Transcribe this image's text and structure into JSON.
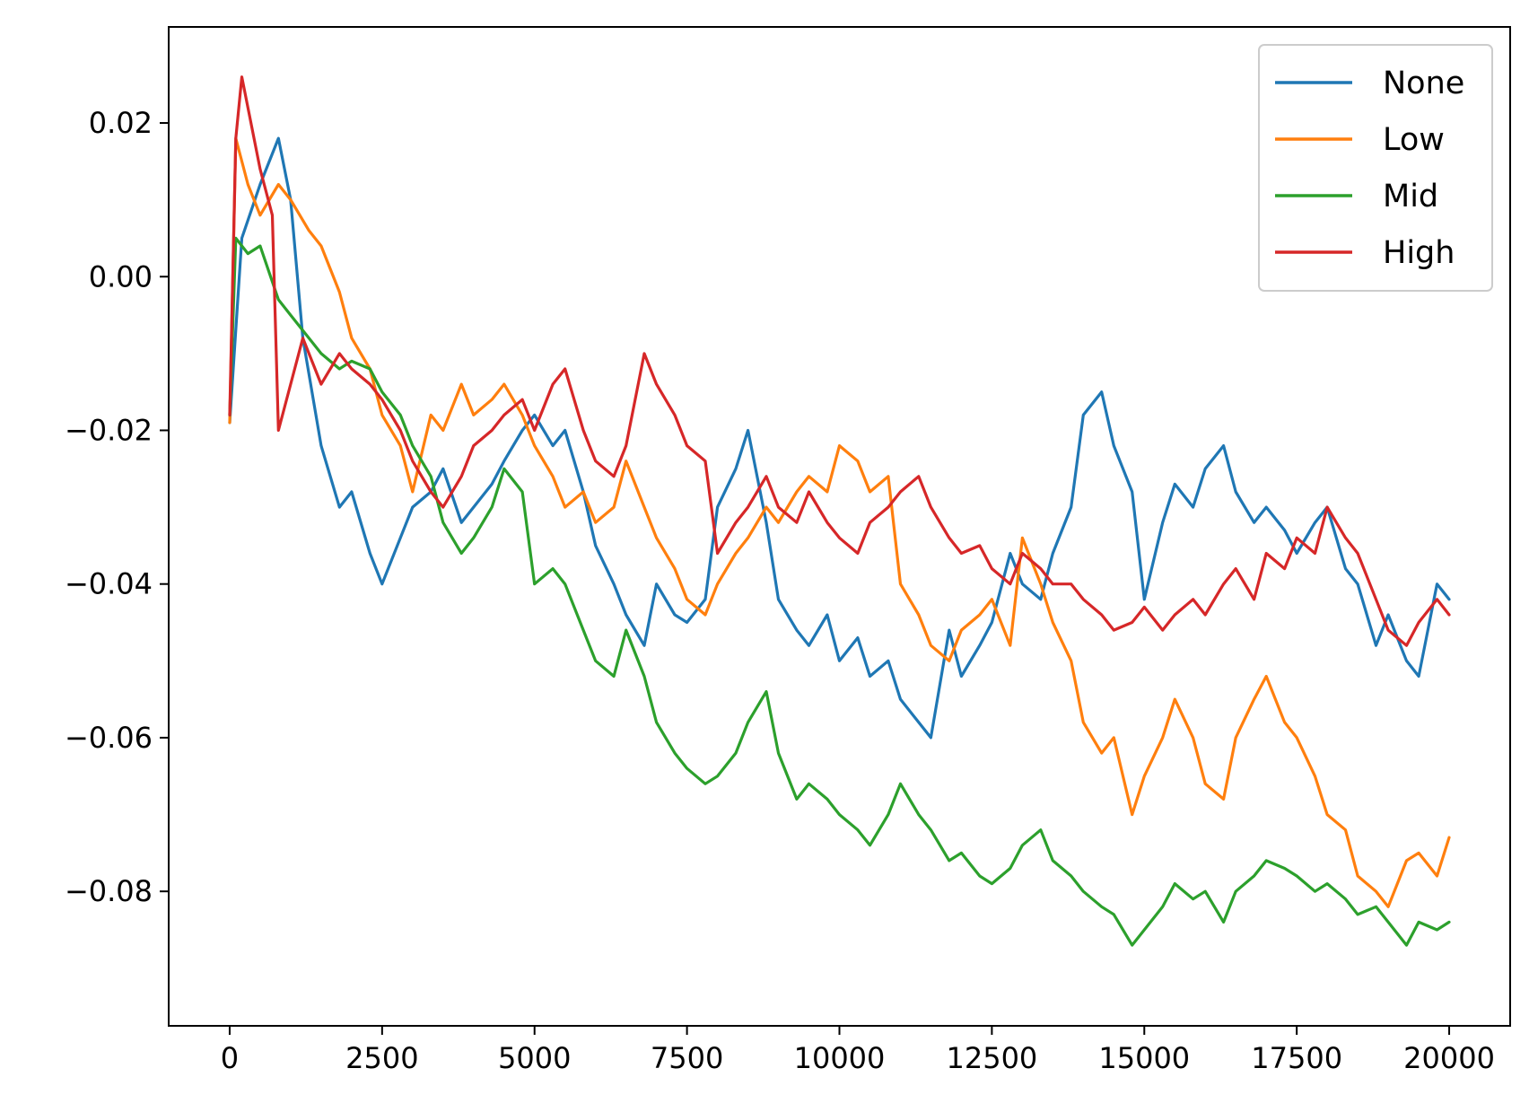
{
  "chart_data": {
    "type": "line",
    "title": "",
    "xlabel": "",
    "ylabel": "",
    "xlim": [
      -1000,
      21000
    ],
    "ylim": [
      -0.0975,
      0.0325
    ],
    "xticks": [
      0,
      2500,
      5000,
      7500,
      10000,
      12500,
      15000,
      17500,
      20000
    ],
    "xtick_labels": [
      "0",
      "2500",
      "5000",
      "7500",
      "10000",
      "12500",
      "15000",
      "17500",
      "20000"
    ],
    "yticks": [
      0.02,
      0.0,
      -0.02,
      -0.04,
      -0.06,
      -0.08
    ],
    "ytick_labels": [
      "0.02",
      "0.00",
      "−0.02",
      "−0.04",
      "−0.06",
      "−0.08"
    ],
    "grid": false,
    "legend_position": "top-right",
    "series": [
      {
        "name": "None",
        "color": "#1f77b4",
        "x": [
          0,
          200,
          500,
          800,
          1000,
          1200,
          1500,
          1800,
          2000,
          2300,
          2500,
          2800,
          3000,
          3300,
          3500,
          3800,
          4000,
          4300,
          4500,
          4800,
          5000,
          5300,
          5500,
          5800,
          6000,
          6300,
          6500,
          6800,
          7000,
          7300,
          7500,
          7800,
          8000,
          8300,
          8500,
          8800,
          9000,
          9300,
          9500,
          9800,
          10000,
          10300,
          10500,
          10800,
          11000,
          11300,
          11500,
          11800,
          12000,
          12300,
          12500,
          12800,
          13000,
          13300,
          13500,
          13800,
          14000,
          14300,
          14500,
          14800,
          15000,
          15300,
          15500,
          15800,
          16000,
          16300,
          16500,
          16800,
          17000,
          17300,
          17500,
          17800,
          18000,
          18300,
          18500,
          18800,
          19000,
          19300,
          19500,
          19800,
          20000
        ],
        "values": [
          -0.019,
          0.005,
          0.012,
          0.018,
          0.01,
          -0.008,
          -0.022,
          -0.03,
          -0.028,
          -0.036,
          -0.04,
          -0.034,
          -0.03,
          -0.028,
          -0.025,
          -0.032,
          -0.03,
          -0.027,
          -0.024,
          -0.02,
          -0.018,
          -0.022,
          -0.02,
          -0.028,
          -0.035,
          -0.04,
          -0.044,
          -0.048,
          -0.04,
          -0.044,
          -0.045,
          -0.042,
          -0.03,
          -0.025,
          -0.02,
          -0.032,
          -0.042,
          -0.046,
          -0.048,
          -0.044,
          -0.05,
          -0.047,
          -0.052,
          -0.05,
          -0.055,
          -0.058,
          -0.06,
          -0.046,
          -0.052,
          -0.048,
          -0.045,
          -0.036,
          -0.04,
          -0.042,
          -0.036,
          -0.03,
          -0.018,
          -0.015,
          -0.022,
          -0.028,
          -0.042,
          -0.032,
          -0.027,
          -0.03,
          -0.025,
          -0.022,
          -0.028,
          -0.032,
          -0.03,
          -0.033,
          -0.036,
          -0.032,
          -0.03,
          -0.038,
          -0.04,
          -0.048,
          -0.044,
          -0.05,
          -0.052,
          -0.04,
          -0.042
        ]
      },
      {
        "name": "Low",
        "color": "#ff7f0e",
        "x": [
          0,
          100,
          300,
          500,
          800,
          1000,
          1300,
          1500,
          1800,
          2000,
          2300,
          2500,
          2800,
          3000,
          3300,
          3500,
          3800,
          4000,
          4300,
          4500,
          4800,
          5000,
          5300,
          5500,
          5800,
          6000,
          6300,
          6500,
          6800,
          7000,
          7300,
          7500,
          7800,
          8000,
          8300,
          8500,
          8800,
          9000,
          9300,
          9500,
          9800,
          10000,
          10300,
          10500,
          10800,
          11000,
          11300,
          11500,
          11800,
          12000,
          12300,
          12500,
          12800,
          13000,
          13300,
          13500,
          13800,
          14000,
          14300,
          14500,
          14800,
          15000,
          15300,
          15500,
          15800,
          16000,
          16300,
          16500,
          16800,
          17000,
          17300,
          17500,
          17800,
          18000,
          18300,
          18500,
          18800,
          19000,
          19300,
          19500,
          19800,
          20000
        ],
        "values": [
          -0.019,
          0.018,
          0.012,
          0.008,
          0.012,
          0.01,
          0.006,
          0.004,
          -0.002,
          -0.008,
          -0.012,
          -0.018,
          -0.022,
          -0.028,
          -0.018,
          -0.02,
          -0.014,
          -0.018,
          -0.016,
          -0.014,
          -0.018,
          -0.022,
          -0.026,
          -0.03,
          -0.028,
          -0.032,
          -0.03,
          -0.024,
          -0.03,
          -0.034,
          -0.038,
          -0.042,
          -0.044,
          -0.04,
          -0.036,
          -0.034,
          -0.03,
          -0.032,
          -0.028,
          -0.026,
          -0.028,
          -0.022,
          -0.024,
          -0.028,
          -0.026,
          -0.04,
          -0.044,
          -0.048,
          -0.05,
          -0.046,
          -0.044,
          -0.042,
          -0.048,
          -0.034,
          -0.04,
          -0.045,
          -0.05,
          -0.058,
          -0.062,
          -0.06,
          -0.07,
          -0.065,
          -0.06,
          -0.055,
          -0.06,
          -0.066,
          -0.068,
          -0.06,
          -0.055,
          -0.052,
          -0.058,
          -0.06,
          -0.065,
          -0.07,
          -0.072,
          -0.078,
          -0.08,
          -0.082,
          -0.076,
          -0.075,
          -0.078,
          -0.073
        ]
      },
      {
        "name": "Mid",
        "color": "#2ca02c",
        "x": [
          0,
          100,
          300,
          500,
          800,
          1000,
          1300,
          1500,
          1800,
          2000,
          2300,
          2500,
          2800,
          3000,
          3300,
          3500,
          3800,
          4000,
          4300,
          4500,
          4800,
          5000,
          5300,
          5500,
          5800,
          6000,
          6300,
          6500,
          6800,
          7000,
          7300,
          7500,
          7800,
          8000,
          8300,
          8500,
          8800,
          9000,
          9300,
          9500,
          9800,
          10000,
          10300,
          10500,
          10800,
          11000,
          11300,
          11500,
          11800,
          12000,
          12300,
          12500,
          12800,
          13000,
          13300,
          13500,
          13800,
          14000,
          14300,
          14500,
          14800,
          15000,
          15300,
          15500,
          15800,
          16000,
          16300,
          16500,
          16800,
          17000,
          17300,
          17500,
          17800,
          18000,
          18300,
          18500,
          18800,
          19000,
          19300,
          19500,
          19800,
          20000
        ],
        "values": [
          -0.018,
          0.005,
          0.003,
          0.004,
          -0.003,
          -0.005,
          -0.008,
          -0.01,
          -0.012,
          -0.011,
          -0.012,
          -0.015,
          -0.018,
          -0.022,
          -0.026,
          -0.032,
          -0.036,
          -0.034,
          -0.03,
          -0.025,
          -0.028,
          -0.04,
          -0.038,
          -0.04,
          -0.046,
          -0.05,
          -0.052,
          -0.046,
          -0.052,
          -0.058,
          -0.062,
          -0.064,
          -0.066,
          -0.065,
          -0.062,
          -0.058,
          -0.054,
          -0.062,
          -0.068,
          -0.066,
          -0.068,
          -0.07,
          -0.072,
          -0.074,
          -0.07,
          -0.066,
          -0.07,
          -0.072,
          -0.076,
          -0.075,
          -0.078,
          -0.079,
          -0.077,
          -0.074,
          -0.072,
          -0.076,
          -0.078,
          -0.08,
          -0.082,
          -0.083,
          -0.087,
          -0.085,
          -0.082,
          -0.079,
          -0.081,
          -0.08,
          -0.084,
          -0.08,
          -0.078,
          -0.076,
          -0.077,
          -0.078,
          -0.08,
          -0.079,
          -0.081,
          -0.083,
          -0.082,
          -0.084,
          -0.087,
          -0.084,
          -0.085,
          -0.084
        ]
      },
      {
        "name": "High",
        "color": "#d62728",
        "x": [
          0,
          100,
          200,
          300,
          500,
          700,
          800,
          1000,
          1200,
          1500,
          1800,
          2000,
          2300,
          2500,
          2800,
          3000,
          3300,
          3500,
          3800,
          4000,
          4300,
          4500,
          4800,
          5000,
          5300,
          5500,
          5800,
          6000,
          6300,
          6500,
          6800,
          7000,
          7300,
          7500,
          7800,
          8000,
          8300,
          8500,
          8800,
          9000,
          9300,
          9500,
          9800,
          10000,
          10300,
          10500,
          10800,
          11000,
          11300,
          11500,
          11800,
          12000,
          12300,
          12500,
          12800,
          13000,
          13300,
          13500,
          13800,
          14000,
          14300,
          14500,
          14800,
          15000,
          15300,
          15500,
          15800,
          16000,
          16300,
          16500,
          16800,
          17000,
          17300,
          17500,
          17800,
          18000,
          18300,
          18500,
          18800,
          19000,
          19300,
          19500,
          19800,
          20000
        ],
        "values": [
          -0.018,
          0.018,
          0.026,
          0.022,
          0.014,
          0.008,
          -0.02,
          -0.014,
          -0.008,
          -0.014,
          -0.01,
          -0.012,
          -0.014,
          -0.016,
          -0.02,
          -0.024,
          -0.028,
          -0.03,
          -0.026,
          -0.022,
          -0.02,
          -0.018,
          -0.016,
          -0.02,
          -0.014,
          -0.012,
          -0.02,
          -0.024,
          -0.026,
          -0.022,
          -0.01,
          -0.014,
          -0.018,
          -0.022,
          -0.024,
          -0.036,
          -0.032,
          -0.03,
          -0.026,
          -0.03,
          -0.032,
          -0.028,
          -0.032,
          -0.034,
          -0.036,
          -0.032,
          -0.03,
          -0.028,
          -0.026,
          -0.03,
          -0.034,
          -0.036,
          -0.035,
          -0.038,
          -0.04,
          -0.036,
          -0.038,
          -0.04,
          -0.04,
          -0.042,
          -0.044,
          -0.046,
          -0.045,
          -0.043,
          -0.046,
          -0.044,
          -0.042,
          -0.044,
          -0.04,
          -0.038,
          -0.042,
          -0.036,
          -0.038,
          -0.034,
          -0.036,
          -0.03,
          -0.034,
          -0.036,
          -0.042,
          -0.046,
          -0.048,
          -0.045,
          -0.042,
          -0.044
        ]
      }
    ]
  }
}
